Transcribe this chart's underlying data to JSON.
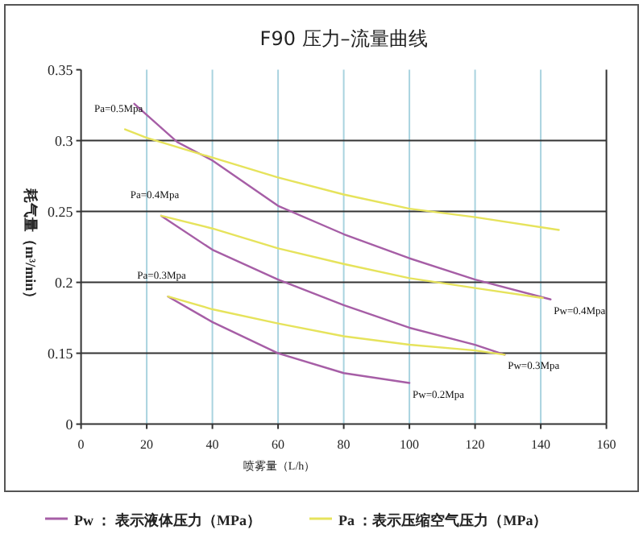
{
  "chart_data": {
    "type": "line",
    "title": "F90 压力–流量曲线",
    "xlabel": "喷雾量（L/h）",
    "ylabel": "耗气量（m³/min）",
    "xlim": [
      0,
      160
    ],
    "xticks": [
      0,
      20,
      40,
      60,
      80,
      100,
      120,
      140,
      160
    ],
    "ylim": [
      0.1,
      0.35
    ],
    "yticks": [
      {
        "value": 0.1,
        "label": "0"
      },
      0.15,
      0.2,
      0.25,
      0.3,
      0.35
    ],
    "grid": true,
    "legend": "bottom",
    "series": [
      {
        "name": "Pw ：  表示液体压力（MPa）",
        "color": "#a65ea6",
        "x": [
          16.2,
          29.3,
          40,
          60,
          80,
          100,
          120,
          143
        ],
        "values": [
          0.326,
          0.299,
          0.286,
          0.254,
          0.234,
          0.217,
          0.202,
          0.188
        ]
      },
      {
        "color": "#a65ea6",
        "x": [
          24.4,
          40,
          60,
          80,
          100,
          120,
          129
        ],
        "values": [
          0.247,
          0.223,
          0.202,
          0.184,
          0.168,
          0.156,
          0.149
        ]
      },
      {
        "color": "#a65ea6",
        "x": [
          26.5,
          40,
          60,
          80,
          100
        ],
        "values": [
          0.19,
          0.172,
          0.15,
          0.136,
          0.129
        ]
      },
      {
        "name": "Pa ：表示压缩空气压力（MPa）",
        "color": "#e6e35c",
        "x": [
          13.4,
          20,
          40,
          60,
          80,
          100,
          120,
          145.5
        ],
        "values": [
          0.308,
          0.302,
          0.288,
          0.274,
          0.262,
          0.252,
          0.246,
          0.237
        ]
      },
      {
        "color": "#e6e35c",
        "x": [
          24.4,
          40,
          60,
          80,
          100,
          120,
          140.6
        ],
        "values": [
          0.247,
          0.238,
          0.224,
          0.213,
          0.203,
          0.196,
          0.189
        ]
      },
      {
        "color": "#e6e35c",
        "x": [
          26.5,
          40,
          60,
          80,
          100,
          120,
          129
        ],
        "values": [
          0.19,
          0.181,
          0.171,
          0.162,
          0.156,
          0.152,
          0.149
        ]
      }
    ],
    "annotations": [
      {
        "text": "Pa=0.5Mpa",
        "x": 13.4,
        "y": 0.308
      },
      {
        "text": "Pa=0.4Mpa",
        "x": 24.4,
        "y": 0.247
      },
      {
        "text": "Pa=0.3Mpa",
        "x": 26.5,
        "y": 0.19
      },
      {
        "text": "Pw=0.4Mpa",
        "x": 143,
        "y": 0.188
      },
      {
        "text": "Pw=0.3Mpa",
        "x": 129,
        "y": 0.149
      },
      {
        "text": "Pw=0.2Mpa",
        "x": 100,
        "y": 0.129
      }
    ]
  }
}
